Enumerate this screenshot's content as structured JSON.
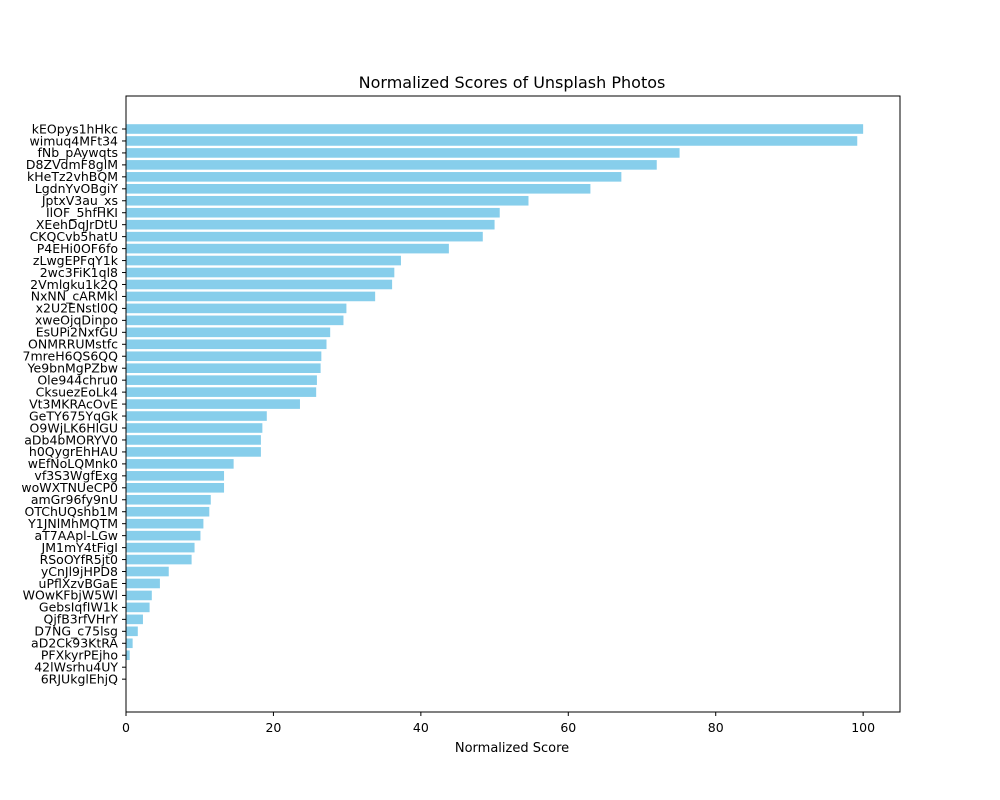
{
  "chart_data": {
    "type": "bar",
    "orientation": "horizontal",
    "title": "Normalized Scores of Unsplash Photos",
    "xlabel": "Normalized Score",
    "ylabel": "",
    "xlim": [
      0,
      105
    ],
    "xticks": [
      0,
      20,
      40,
      60,
      80,
      100
    ],
    "bar_color": "#87ceeb",
    "grid": false,
    "categories": [
      "kEOpys1hHkc",
      "wimuq4MFt34",
      "fNb_pAywqts",
      "D8ZVdmF8glM",
      "kHeTz2vhBQM",
      "LgdnYvOBgiY",
      "JptxV3au_xs",
      "IlOF_5hfHKI",
      "XEehDqJrDtU",
      "CKQCvb5hatU",
      "P4EHi0OF6fo",
      "zLwgEPFqY1k",
      "2wc3FiK1ql8",
      "2Vmlgku1k2Q",
      "NxNN_cARMkl",
      "x2U2ENstl0Q",
      "xweOjqDinpo",
      "EsUPi2NxfGU",
      "ONMRRUMstfc",
      "7mreH6QS6QQ",
      "Ye9bnMgPZbw",
      "Ole944chru0",
      "CksuezEoLk4",
      "Vt3MKRAcOvE",
      "GeTY675YqGk",
      "O9WjLK6HlGU",
      "aDb4bMORYV0",
      "h0QygrEhHAU",
      "wEfNoLQMnk0",
      "vf3S3WgfExg",
      "woWXTNUeCP0",
      "amGr96fy9nU",
      "OTChUQshb1M",
      "Y1JNlMhMQTM",
      "aT7AApl-LGw",
      "JM1mY4tFigI",
      "RSoOYfR5jt0",
      "yCnJl9jHPD8",
      "uPflXzvBGaE",
      "WOwKFbjW5Wl",
      "GebsIqfIW1k",
      "QjfB3rfVHrY",
      "D7NG_c75lsg",
      "aD2Ck93KtRA",
      "PFXkyrPEjho",
      "42lWsrhu4UY",
      "6RJUkglEhjQ"
    ],
    "values": [
      100,
      99.2,
      75.1,
      72.0,
      67.2,
      63.0,
      54.6,
      50.7,
      50.0,
      48.4,
      43.8,
      37.3,
      36.4,
      36.1,
      33.8,
      29.9,
      29.5,
      27.7,
      27.2,
      26.5,
      26.4,
      25.9,
      25.8,
      23.6,
      19.1,
      18.5,
      18.3,
      18.3,
      14.6,
      13.3,
      13.3,
      11.5,
      11.3,
      10.5,
      10.1,
      9.3,
      8.9,
      5.8,
      4.6,
      3.5,
      3.2,
      2.3,
      1.6,
      0.9,
      0.5,
      0.0,
      0.0
    ]
  }
}
